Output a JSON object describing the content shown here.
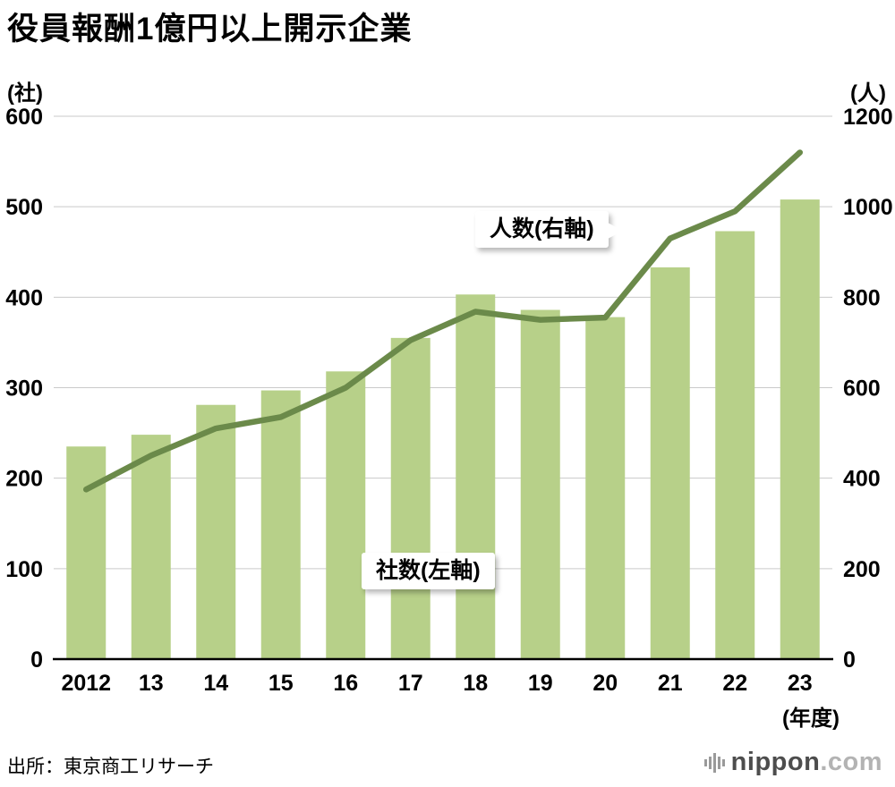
{
  "page": {
    "title": "役員報酬1億円以上開示企業",
    "left_axis_unit": "(社)",
    "right_axis_unit": "(人)",
    "x_axis_unit": "(年度)",
    "source": "出所：東京商工リサーチ",
    "logo_main": "nippon",
    "logo_domain": ".com"
  },
  "annotations": {
    "line_label": "人数(右軸)",
    "bar_label": "社数(左軸)"
  },
  "colors": {
    "bar": "#b7d089",
    "line": "#6b8a4a",
    "grid": "#c9c9c9",
    "axis": "#000000"
  },
  "chart_data": {
    "type": "bar+line",
    "title": "役員報酬1億円以上開示企業",
    "categories": [
      "2012",
      "13",
      "14",
      "15",
      "16",
      "17",
      "18",
      "19",
      "20",
      "21",
      "22",
      "23"
    ],
    "x_unit": "年度",
    "series": [
      {
        "name": "社数(左軸)",
        "type": "bar",
        "axis": "left",
        "unit": "社",
        "values": [
          235,
          248,
          281,
          297,
          318,
          355,
          403,
          386,
          378,
          433,
          473,
          508
        ]
      },
      {
        "name": "人数(右軸)",
        "type": "line",
        "axis": "right",
        "unit": "人",
        "values": [
          375,
          450,
          510,
          535,
          600,
          705,
          768,
          750,
          755,
          930,
          990,
          1120
        ]
      }
    ],
    "left_axis": {
      "label": "(社)",
      "min": 0,
      "max": 600,
      "step": 100,
      "ticks": [
        0,
        100,
        200,
        300,
        400,
        500,
        600
      ]
    },
    "right_axis": {
      "label": "(人)",
      "min": 0,
      "max": 1200,
      "step": 200,
      "ticks": [
        0,
        200,
        400,
        600,
        800,
        1000,
        1200
      ]
    },
    "grid": true,
    "legend_position": "inline-callouts"
  }
}
